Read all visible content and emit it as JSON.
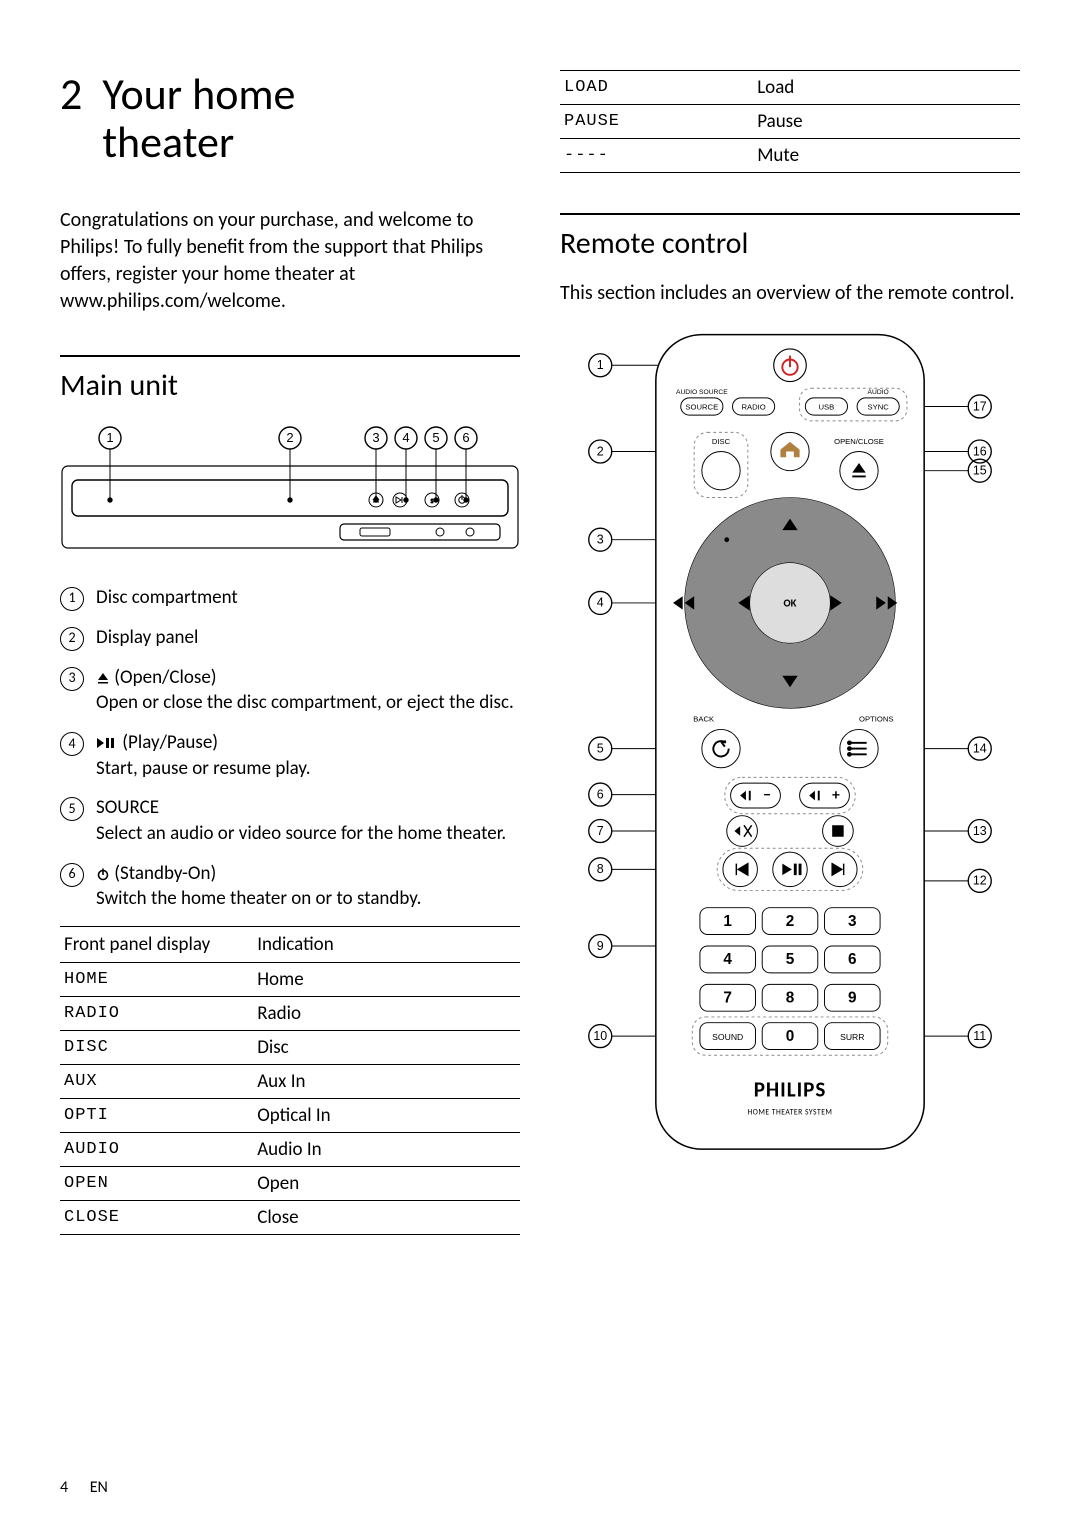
{
  "section_number": "2",
  "section_title_line1": "Your home",
  "section_title_line2": "theater",
  "intro": "Congratulations on your purchase, and welcome to Philips! To fully benefit from the support that Philips offers, register your home theater at www.philips.com/welcome.",
  "main_unit_heading": "Main unit",
  "main_unit_callouts": [
    "1",
    "2",
    "3",
    "4",
    "5",
    "6"
  ],
  "legend": [
    {
      "n": "1",
      "heading": "Disc compartment",
      "desc": ""
    },
    {
      "n": "2",
      "heading": "Display panel",
      "desc": ""
    },
    {
      "n": "3",
      "icon": "eject",
      "heading": "(Open/Close)",
      "desc": "Open or close the disc compartment, or eject the disc."
    },
    {
      "n": "4",
      "icon": "playpause",
      "heading": "(Play/Pause)",
      "desc": "Start, pause or resume play."
    },
    {
      "n": "5",
      "heading": "SOURCE",
      "desc": "Select an audio or video source for the home theater."
    },
    {
      "n": "6",
      "icon": "power",
      "heading": "(Standby-On)",
      "desc": "Switch the home theater on or to standby."
    }
  ],
  "display_table": {
    "headers": [
      "Front panel display",
      "Indication"
    ],
    "rows": [
      [
        "HOME",
        "Home"
      ],
      [
        "RADIO",
        "Radio"
      ],
      [
        "DISC",
        "Disc"
      ],
      [
        "AUX",
        "Aux In"
      ],
      [
        "OPTI",
        "Optical In"
      ],
      [
        "AUDIO",
        "Audio In"
      ],
      [
        "OPEN",
        "Open"
      ],
      [
        "CLOSE",
        "Close"
      ]
    ]
  },
  "display_table_right": {
    "rows": [
      [
        "LOAD",
        "Load"
      ],
      [
        "PAUSE",
        "Pause"
      ],
      [
        "----",
        "Mute"
      ]
    ]
  },
  "remote_heading": "Remote control",
  "remote_intro": "This section includes an overview of the remote control.",
  "remote_callouts_left": [
    "1",
    "2",
    "3",
    "4",
    "5",
    "6",
    "7",
    "8",
    "9",
    "10"
  ],
  "remote_callouts_right": [
    "17",
    "16",
    "15",
    "14",
    "13",
    "12",
    "11"
  ],
  "remote_labels": {
    "audio_source": "AUDIO\nSOURCE",
    "source": "SOURCE",
    "radio": "RADIO",
    "usb": "USB",
    "audio_sync": "AUDIO\nSYNC",
    "sync": "SYNC",
    "disc": "DISC",
    "open_close": "OPEN/CLOSE",
    "ok": "OK",
    "back": "BACK",
    "options": "OPTIONS",
    "sound": "SOUND",
    "surr": "SURR",
    "brand": "PHILIPS",
    "subtitle": "HOME THEATER SYSTEM",
    "digits": [
      "1",
      "2",
      "3",
      "4",
      "5",
      "6",
      "7",
      "8",
      "9",
      "0"
    ]
  },
  "colors": {
    "dashed": "#888888",
    "nav_ring": "#888888",
    "power": "#cc2222",
    "home_fill": "#b08040"
  },
  "footer": {
    "page": "4",
    "lang": "EN"
  }
}
